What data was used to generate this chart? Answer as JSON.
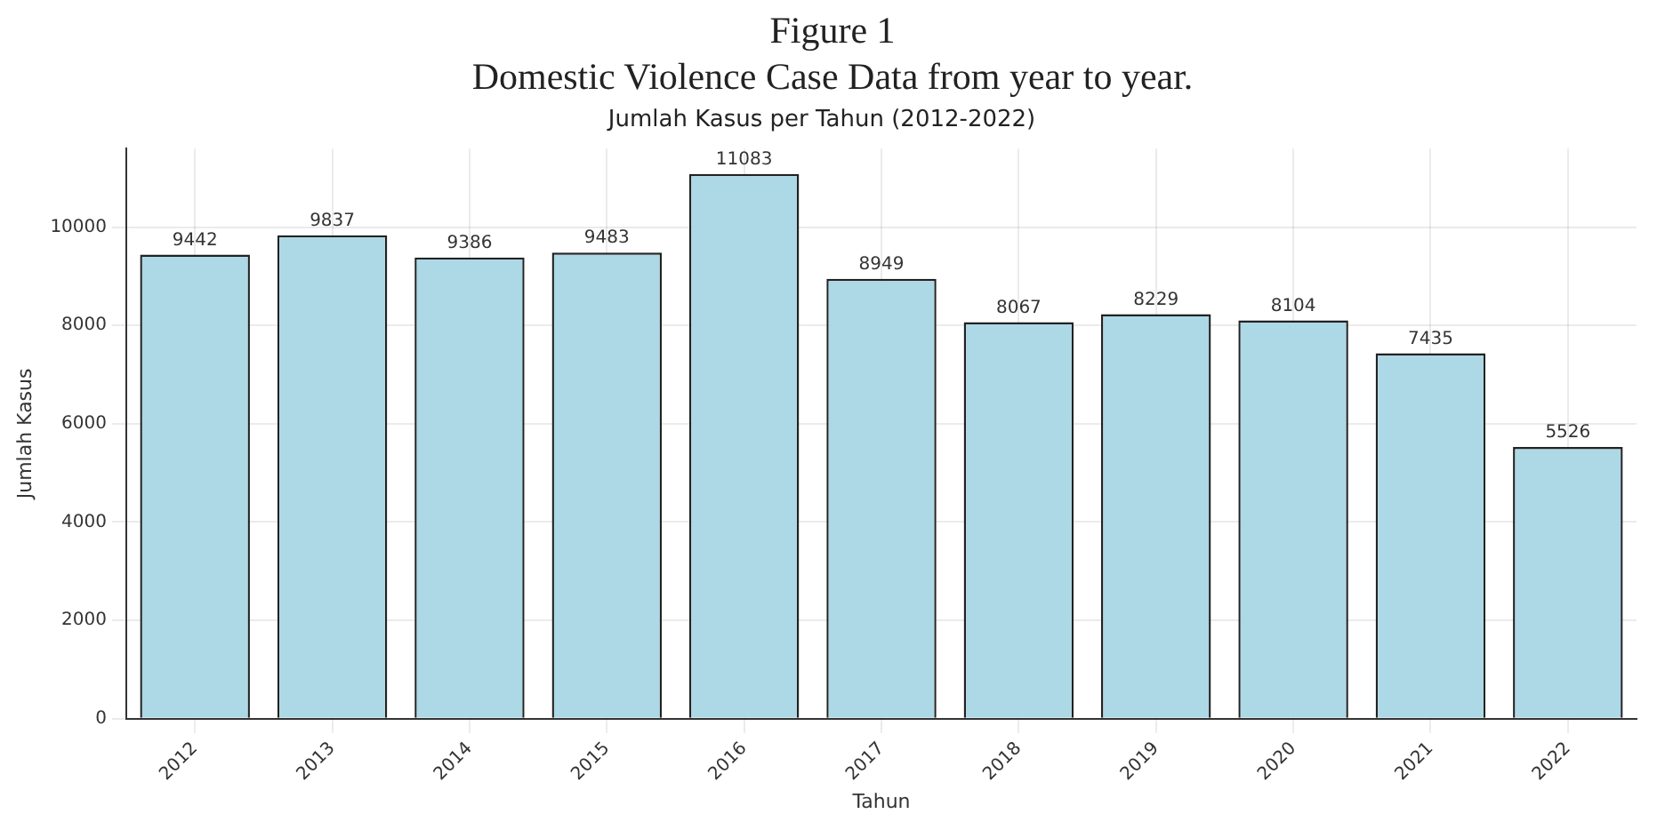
{
  "chart_data": {
    "type": "bar",
    "title": "Jumlah Kasus per Tahun (2012-2022)",
    "annotations": [
      "Figure 1",
      "Domestic Violence Case Data from year to year."
    ],
    "xlabel": "Tahun",
    "ylabel": "Jumlah Kasus",
    "categories": [
      "2012",
      "2013",
      "2014",
      "2015",
      "2016",
      "2017",
      "2018",
      "2019",
      "2020",
      "2021",
      "2022"
    ],
    "values": [
      9442,
      9837,
      9386,
      9483,
      11083,
      8949,
      8067,
      8229,
      8104,
      7435,
      5526
    ],
    "color": "#add8e6",
    "ylim": [
      0,
      11600
    ],
    "yticks": [
      0,
      2000,
      4000,
      6000,
      8000,
      10000
    ],
    "grid": true,
    "data_labels": true
  }
}
